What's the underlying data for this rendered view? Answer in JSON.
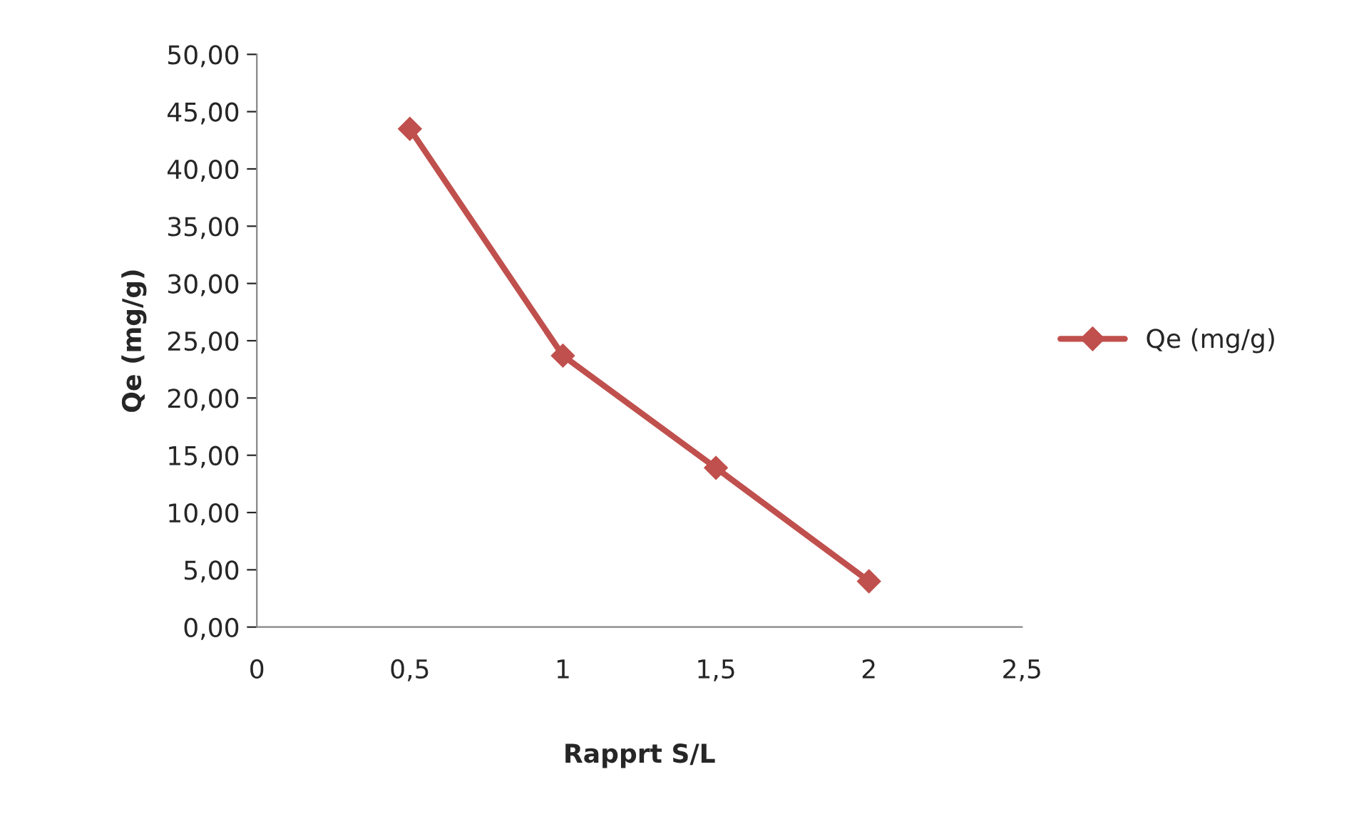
{
  "chart_data": {
    "type": "line",
    "xlabel": "Rapprt S/L",
    "ylabel": "Qe (mg/g)",
    "x": [
      0.5,
      1,
      1.5,
      2
    ],
    "series": [
      {
        "name": "Qe (mg/g)",
        "color": "#c0504d",
        "values": [
          43.5,
          23.7,
          13.9,
          4.0
        ]
      }
    ],
    "xlim": [
      0,
      2.5
    ],
    "xticks": [
      {
        "value": 0,
        "label": "0"
      },
      {
        "value": 0.5,
        "label": "0,5"
      },
      {
        "value": 1,
        "label": "1"
      },
      {
        "value": 1.5,
        "label": "1,5"
      },
      {
        "value": 2,
        "label": "2"
      },
      {
        "value": 2.5,
        "label": "2,5"
      }
    ],
    "ylim": [
      0,
      50
    ],
    "yticks": [
      {
        "value": 0,
        "label": "0,00"
      },
      {
        "value": 5,
        "label": "5,00"
      },
      {
        "value": 10,
        "label": "10,00"
      },
      {
        "value": 15,
        "label": "15,00"
      },
      {
        "value": 20,
        "label": "20,00"
      },
      {
        "value": 25,
        "label": "25,00"
      },
      {
        "value": 30,
        "label": "30,00"
      },
      {
        "value": 35,
        "label": "35,00"
      },
      {
        "value": 40,
        "label": "40,00"
      },
      {
        "value": 45,
        "label": "45,00"
      },
      {
        "value": 50,
        "label": "50,00"
      }
    ],
    "grid": false,
    "legend": "right",
    "marker": "diamond",
    "line_style": "solid"
  }
}
